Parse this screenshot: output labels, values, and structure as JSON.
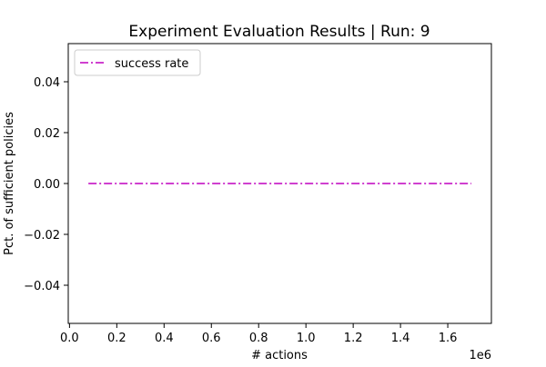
{
  "chart_data": {
    "type": "line",
    "title": "Experiment Evaluation Results | Run: 9",
    "xlabel": "# actions",
    "ylabel": "Pct. of sufficient policies",
    "x_offset_label": "1e6",
    "xlim": [
      -0.0053,
      1.7845
    ],
    "ylim": [
      -0.055,
      0.055
    ],
    "x_ticks": [
      0.0,
      0.2,
      0.4,
      0.6,
      0.8,
      1.0,
      1.2,
      1.4,
      1.6
    ],
    "x_tick_labels": [
      "0.0",
      "0.2",
      "0.4",
      "0.6",
      "0.8",
      "1.0",
      "1.2",
      "1.4",
      "1.6"
    ],
    "y_ticks": [
      -0.04,
      -0.02,
      0.0,
      0.02,
      0.04
    ],
    "y_tick_labels": [
      "−0.04",
      "−0.02",
      "0.00",
      "0.02",
      "0.04"
    ],
    "legend": {
      "placement": "top-left"
    },
    "series": [
      {
        "name": "success rate",
        "color": "#bf00bf",
        "line_style": "dash-dot",
        "x": [
          0.08,
          0.16,
          0.24,
          0.32,
          0.4,
          0.48,
          0.56,
          0.64,
          0.72,
          0.8,
          0.88,
          0.96,
          1.04,
          1.12,
          1.2,
          1.28,
          1.36,
          1.44,
          1.52,
          1.6,
          1.68,
          1.7
        ],
        "y": [
          0.0,
          0.0,
          0.0,
          0.0,
          0.0,
          0.0,
          0.0,
          0.0,
          0.0,
          0.0,
          0.0,
          0.0,
          0.0,
          0.0,
          0.0,
          0.0,
          0.0,
          0.0,
          0.0,
          0.0,
          0.0,
          0.0
        ]
      }
    ]
  }
}
